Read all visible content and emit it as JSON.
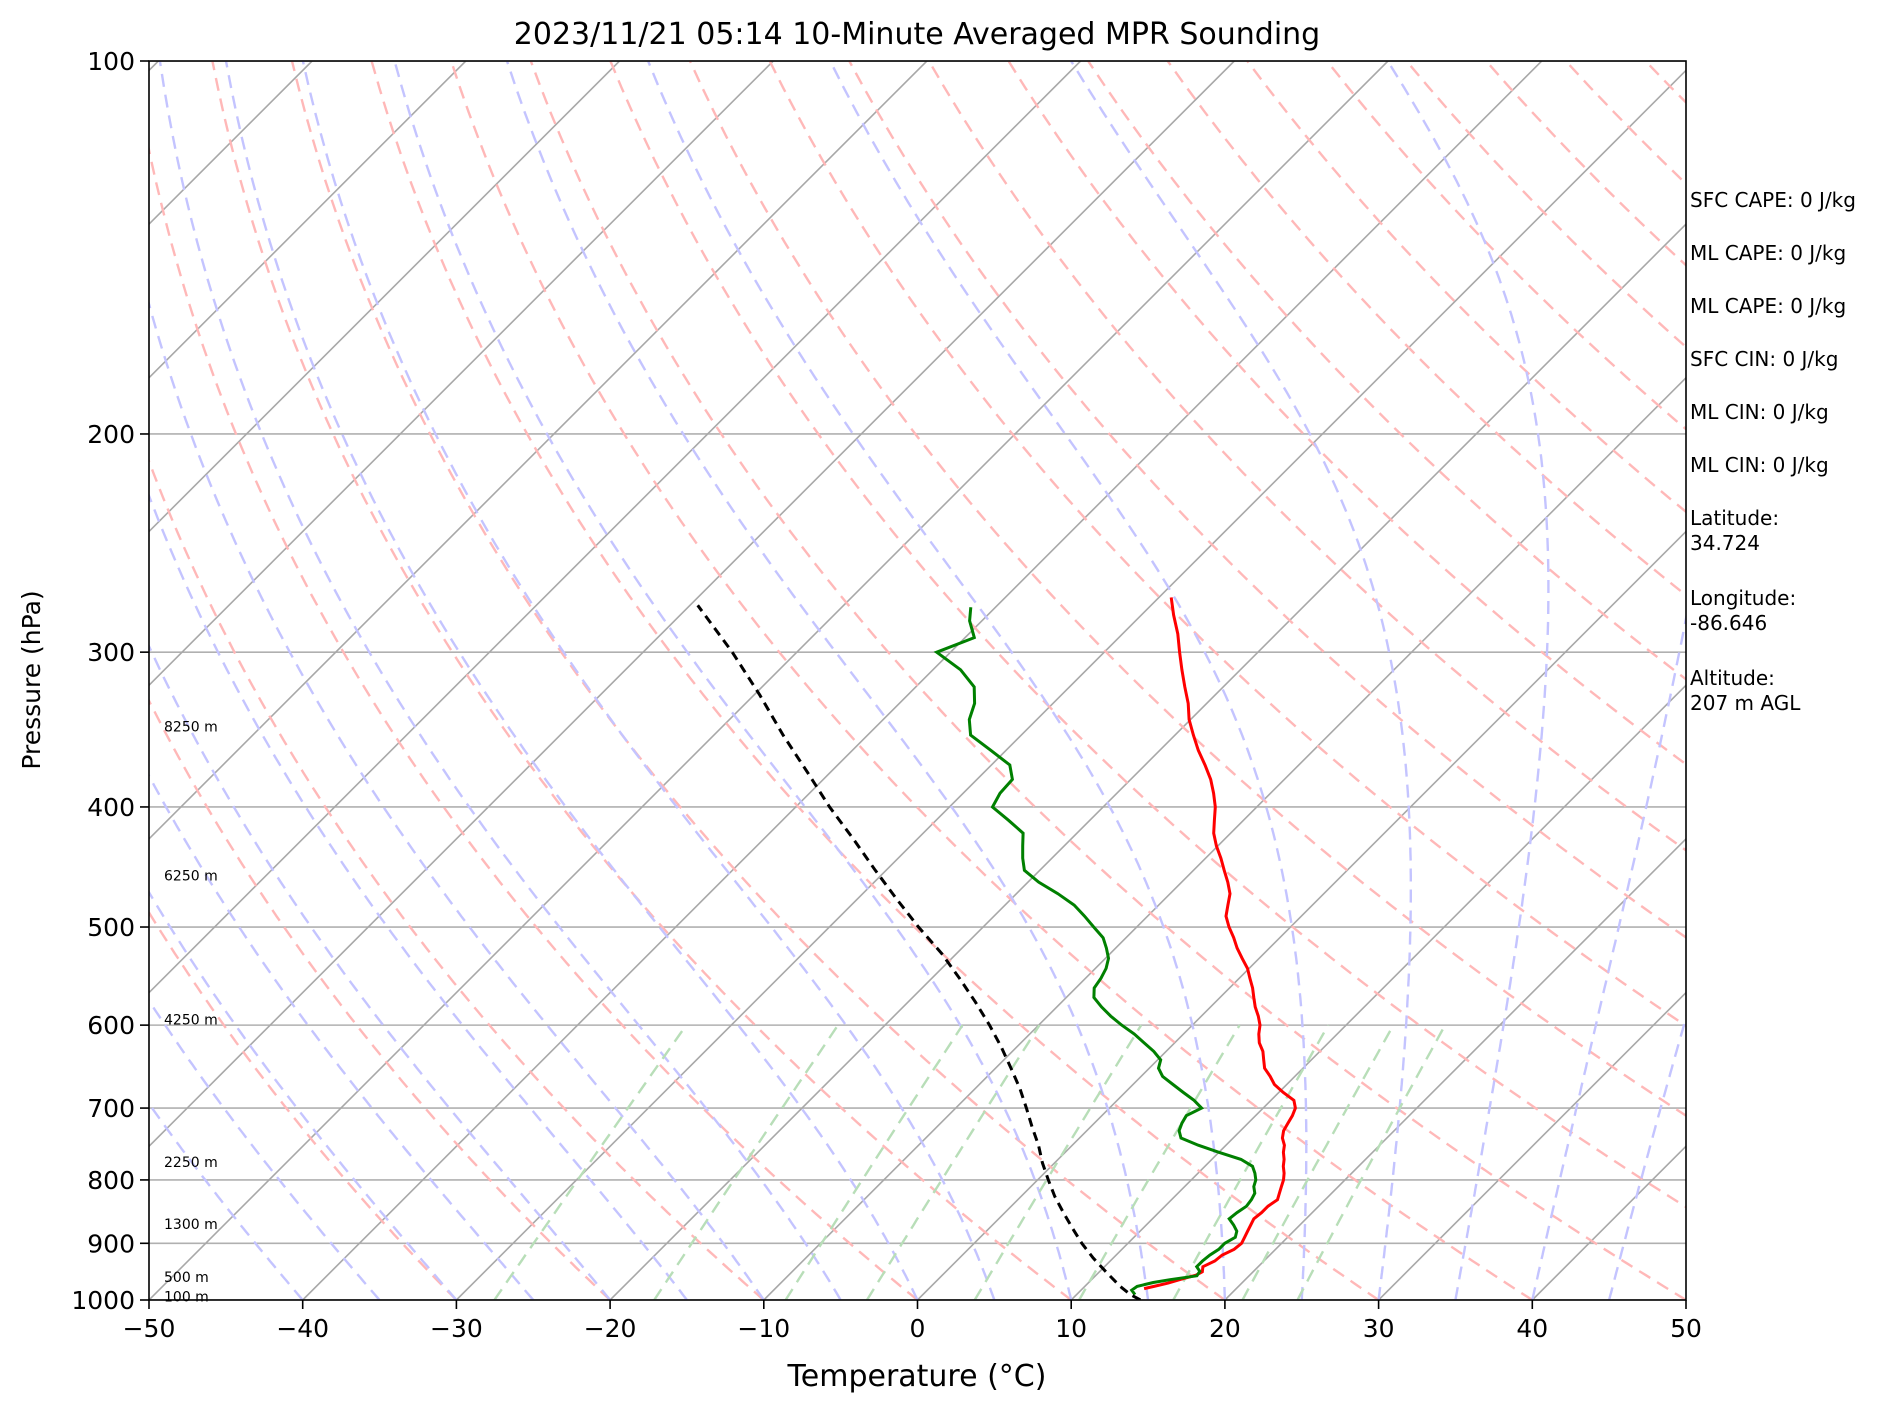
{
  "chart_data": {
    "type": "line",
    "subtype": "skew-T log-P sounding",
    "title": "2023/11/21 05:14 10-Minute Averaged MPR Sounding",
    "xlabel": "Temperature (°C)",
    "ylabel": "Pressure (hPa)",
    "xlim": [
      -50,
      50
    ],
    "ylim": [
      1000,
      100
    ],
    "y_scale": "log",
    "x_ticks": [
      -50,
      -40,
      -30,
      -20,
      -10,
      0,
      10,
      20,
      30,
      40,
      50
    ],
    "x_tick_labels": [
      "−50",
      "−40",
      "−30",
      "−20",
      "−10",
      "0",
      "10",
      "20",
      "30",
      "40",
      "50"
    ],
    "y_ticks": [
      100,
      200,
      300,
      400,
      500,
      600,
      700,
      800,
      900,
      1000
    ],
    "y_tick_labels": [
      "100",
      "200",
      "300",
      "400",
      "500",
      "600",
      "700",
      "800",
      "900",
      "1000"
    ],
    "grid": true,
    "height_labels": [
      {
        "pressure": 345,
        "text": "8250 m"
      },
      {
        "pressure": 455,
        "text": "6250 m"
      },
      {
        "pressure": 595,
        "text": "4250 m"
      },
      {
        "pressure": 775,
        "text": "2250 m"
      },
      {
        "pressure": 870,
        "text": "1300 m"
      },
      {
        "pressure": 960,
        "text": "500 m"
      },
      {
        "pressure": 995,
        "text": "100 m"
      }
    ],
    "series": [
      {
        "role": "temperature",
        "color": "#ff0000",
        "points": [
          [
            979,
            14.0
          ],
          [
            975,
            14.5
          ],
          [
            969,
            15.2
          ],
          [
            962,
            15.8
          ],
          [
            955,
            16.5
          ],
          [
            949,
            16.7
          ],
          [
            940,
            16.4
          ],
          [
            930,
            16.8
          ],
          [
            920,
            16.9
          ],
          [
            910,
            17.3
          ],
          [
            900,
            17.4
          ],
          [
            890,
            17.2
          ],
          [
            880,
            17.0
          ],
          [
            870,
            16.8
          ],
          [
            860,
            16.6
          ],
          [
            850,
            16.7
          ],
          [
            840,
            16.7
          ],
          [
            830,
            16.9
          ],
          [
            820,
            16.6
          ],
          [
            810,
            16.3
          ],
          [
            800,
            16.0
          ],
          [
            790,
            15.6
          ],
          [
            780,
            15.1
          ],
          [
            770,
            14.7
          ],
          [
            760,
            14.2
          ],
          [
            750,
            13.8
          ],
          [
            740,
            13.2
          ],
          [
            730,
            12.8
          ],
          [
            720,
            12.6
          ],
          [
            710,
            12.4
          ],
          [
            700,
            12.1
          ],
          [
            690,
            11.5
          ],
          [
            680,
            10.3
          ],
          [
            670,
            9.2
          ],
          [
            660,
            8.4
          ],
          [
            650,
            7.5
          ],
          [
            640,
            6.9
          ],
          [
            630,
            6.3
          ],
          [
            620,
            5.5
          ],
          [
            610,
            4.9
          ],
          [
            600,
            4.4
          ],
          [
            590,
            3.7
          ],
          [
            580,
            2.9
          ],
          [
            570,
            2.2
          ],
          [
            560,
            1.5
          ],
          [
            550,
            0.7
          ],
          [
            540,
            -0.1
          ],
          [
            530,
            -1.1
          ],
          [
            520,
            -2.1
          ],
          [
            510,
            -3.0
          ],
          [
            500,
            -4.0
          ],
          [
            490,
            -4.9
          ],
          [
            480,
            -5.5
          ],
          [
            470,
            -6.1
          ],
          [
            460,
            -7.0
          ],
          [
            450,
            -8.0
          ],
          [
            440,
            -9.0
          ],
          [
            430,
            -10.1
          ],
          [
            420,
            -11.1
          ],
          [
            410,
            -11.9
          ],
          [
            400,
            -12.7
          ],
          [
            390,
            -13.7
          ],
          [
            380,
            -14.8
          ],
          [
            370,
            -16.1
          ],
          [
            360,
            -17.5
          ],
          [
            350,
            -18.8
          ],
          [
            340,
            -20.1
          ],
          [
            330,
            -21.2
          ],
          [
            320,
            -22.5
          ],
          [
            310,
            -23.8
          ],
          [
            300,
            -25.1
          ],
          [
            290,
            -26.4
          ],
          [
            280,
            -27.9
          ],
          [
            271,
            -29.2
          ]
        ]
      },
      {
        "role": "dewpoint",
        "color": "#008000",
        "points": [
          [
            990,
            13.8
          ],
          [
            982,
            13.3
          ],
          [
            975,
            13.4
          ],
          [
            968,
            14.2
          ],
          [
            963,
            15.1
          ],
          [
            956,
            16.6
          ],
          [
            948,
            16.5
          ],
          [
            940,
            16.0
          ],
          [
            930,
            16.0
          ],
          [
            920,
            16.1
          ],
          [
            910,
            16.3
          ],
          [
            900,
            16.3
          ],
          [
            890,
            16.6
          ],
          [
            880,
            16.3
          ],
          [
            870,
            15.7
          ],
          [
            860,
            15.0
          ],
          [
            850,
            15.1
          ],
          [
            840,
            15.3
          ],
          [
            830,
            15.2
          ],
          [
            820,
            15.0
          ],
          [
            810,
            14.5
          ],
          [
            800,
            14.2
          ],
          [
            790,
            13.7
          ],
          [
            780,
            13.1
          ],
          [
            770,
            11.9
          ],
          [
            760,
            10.0
          ],
          [
            750,
            8.2
          ],
          [
            740,
            6.6
          ],
          [
            730,
            6.0
          ],
          [
            720,
            5.7
          ],
          [
            710,
            5.5
          ],
          [
            700,
            6.0
          ],
          [
            690,
            5.0
          ],
          [
            680,
            3.8
          ],
          [
            670,
            2.6
          ],
          [
            660,
            1.4
          ],
          [
            650,
            0.6
          ],
          [
            640,
            0.2
          ],
          [
            630,
            -0.8
          ],
          [
            620,
            -2.0
          ],
          [
            610,
            -3.2
          ],
          [
            600,
            -4.6
          ],
          [
            590,
            -5.9
          ],
          [
            580,
            -7.1
          ],
          [
            570,
            -8.2
          ],
          [
            560,
            -8.8
          ],
          [
            550,
            -9.0
          ],
          [
            540,
            -9.3
          ],
          [
            530,
            -9.8
          ],
          [
            520,
            -10.6
          ],
          [
            510,
            -11.5
          ],
          [
            500,
            -12.8
          ],
          [
            490,
            -14.1
          ],
          [
            480,
            -15.5
          ],
          [
            470,
            -17.3
          ],
          [
            460,
            -19.3
          ],
          [
            450,
            -21.0
          ],
          [
            440,
            -21.9
          ],
          [
            430,
            -22.7
          ],
          [
            420,
            -23.5
          ],
          [
            410,
            -25.3
          ],
          [
            400,
            -27.2
          ],
          [
            390,
            -27.6
          ],
          [
            380,
            -27.7
          ],
          [
            370,
            -28.8
          ],
          [
            360,
            -31.0
          ],
          [
            350,
            -33.3
          ],
          [
            340,
            -34.4
          ],
          [
            330,
            -35.1
          ],
          [
            320,
            -36.2
          ],
          [
            310,
            -38.2
          ],
          [
            300,
            -40.9
          ],
          [
            292,
            -39.4
          ],
          [
            283,
            -40.8
          ],
          [
            276,
            -41.6
          ]
        ]
      },
      {
        "role": "parcel",
        "color": "#000000",
        "style": "dashed",
        "points": [
          [
            1000,
            14.5
          ],
          [
            990,
            13.5
          ],
          [
            975,
            12.3
          ],
          [
            950,
            10.5
          ],
          [
            925,
            8.7
          ],
          [
            900,
            7.0
          ],
          [
            875,
            5.4
          ],
          [
            850,
            3.8
          ],
          [
            825,
            2.2
          ],
          [
            800,
            0.7
          ],
          [
            775,
            -0.8
          ],
          [
            750,
            -2.2
          ],
          [
            725,
            -3.8
          ],
          [
            700,
            -5.4
          ],
          [
            675,
            -7.1
          ],
          [
            650,
            -9.0
          ],
          [
            625,
            -11.0
          ],
          [
            600,
            -13.2
          ],
          [
            575,
            -15.6
          ],
          [
            550,
            -18.2
          ],
          [
            525,
            -21.0
          ],
          [
            500,
            -24.2
          ],
          [
            475,
            -27.4
          ],
          [
            450,
            -30.7
          ],
          [
            425,
            -34.1
          ],
          [
            400,
            -37.8
          ],
          [
            375,
            -41.5
          ],
          [
            350,
            -45.5
          ],
          [
            325,
            -49.6
          ],
          [
            300,
            -54.2
          ],
          [
            275,
            -59.5
          ]
        ]
      }
    ]
  },
  "stats": {
    "sfc_cape": "SFC CAPE: 0 J/kg",
    "ml_cape_1": "ML CAPE: 0 J/kg",
    "ml_cape_2": "ML CAPE: 0 J/kg",
    "sfc_cin": "SFC CIN: 0 J/kg",
    "ml_cin_1": "ML CIN: 0 J/kg",
    "ml_cin_2": "ML CIN: 0 J/kg",
    "latitude_label": "Latitude:",
    "latitude_value": "34.724",
    "longitude_label": "Longitude:",
    "longitude_value": "-86.646",
    "altitude_label": "Altitude:",
    "altitude_value": "207 m AGL"
  }
}
